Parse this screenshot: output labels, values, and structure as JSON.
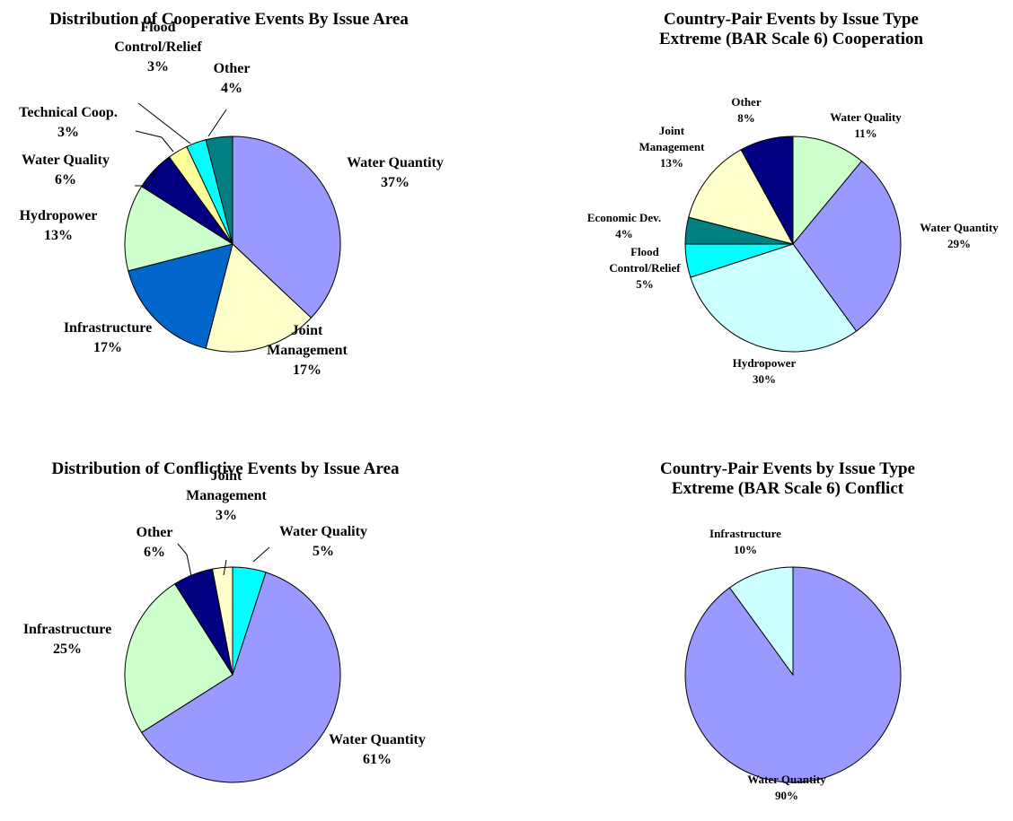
{
  "chart_data": [
    {
      "type": "pie",
      "title": [
        "Distribution of Cooperative Events By Issue Area"
      ],
      "slices": [
        {
          "label": [
            "Water Quantity"
          ],
          "pct_label": "37%",
          "value": 37,
          "color": "#9999ff"
        },
        {
          "label": [
            "Joint",
            "Management"
          ],
          "pct_label": "17%",
          "value": 17,
          "color": "#ffffcc"
        },
        {
          "label": [
            "Infrastructure"
          ],
          "pct_label": "17%",
          "value": 17,
          "color": "#0066cc"
        },
        {
          "label": [
            "Hydropower"
          ],
          "pct_label": "13%",
          "value": 13,
          "color": "#ccffcc"
        },
        {
          "label": [
            "Water Quality"
          ],
          "pct_label": "6%",
          "value": 6,
          "color": "#000080"
        },
        {
          "label": [
            "Technical Coop."
          ],
          "pct_label": "3%",
          "value": 3,
          "color": "#ffff99"
        },
        {
          "label": [
            "Flood",
            "Control/Relief"
          ],
          "pct_label": "3%",
          "value": 3,
          "color": "#00ffff"
        },
        {
          "label": [
            "Other"
          ],
          "pct_label": "4%",
          "value": 4,
          "color": "#008080"
        }
      ]
    },
    {
      "type": "pie",
      "title": [
        "Country-Pair Events by Issue Type",
        "Extreme (BAR Scale 6) Cooperation"
      ],
      "slices": [
        {
          "label": [
            "Water Quality"
          ],
          "pct_label": "11%",
          "value": 11,
          "color": "#ccffcc"
        },
        {
          "label": [
            "Water Quantity"
          ],
          "pct_label": "29%",
          "value": 29,
          "color": "#9999ff"
        },
        {
          "label": [
            "Hydropower"
          ],
          "pct_label": "30%",
          "value": 30,
          "color": "#ccffff"
        },
        {
          "label": [
            "Flood",
            "Control/Relief"
          ],
          "pct_label": "5%",
          "value": 5,
          "color": "#00ffff"
        },
        {
          "label": [
            "Economic Dev."
          ],
          "pct_label": "4%",
          "value": 4,
          "color": "#008080"
        },
        {
          "label": [
            "Joint",
            "Management"
          ],
          "pct_label": "13%",
          "value": 13,
          "color": "#ffffcc"
        },
        {
          "label": [
            "Other"
          ],
          "pct_label": "8%",
          "value": 8,
          "color": "#000080"
        }
      ]
    },
    {
      "type": "pie",
      "title": [
        "Distribution of Conflictive Events by Issue Area"
      ],
      "slices": [
        {
          "label": [
            "Water Quality"
          ],
          "pct_label": "5%",
          "value": 5,
          "color": "#00ffff"
        },
        {
          "label": [
            "Water Quantity"
          ],
          "pct_label": "61%",
          "value": 61,
          "color": "#9999ff"
        },
        {
          "label": [
            "Infrastructure"
          ],
          "pct_label": "25%",
          "value": 25,
          "color": "#ccffcc"
        },
        {
          "label": [
            "Other"
          ],
          "pct_label": "6%",
          "value": 6,
          "color": "#000080"
        },
        {
          "label": [
            "Joint",
            "Management"
          ],
          "pct_label": "3%",
          "value": 3,
          "color": "#ffffcc"
        }
      ]
    },
    {
      "type": "pie",
      "title": [
        "Country-Pair Events by Issue Type",
        "Extreme (BAR Scale 6) Conflict"
      ],
      "slices": [
        {
          "label": [
            "Water Quantity"
          ],
          "pct_label": "90%",
          "value": 90,
          "color": "#9999ff"
        },
        {
          "label": [
            "Infrastructure"
          ],
          "pct_label": "10%",
          "value": 10,
          "color": "#ccffff"
        }
      ]
    }
  ]
}
